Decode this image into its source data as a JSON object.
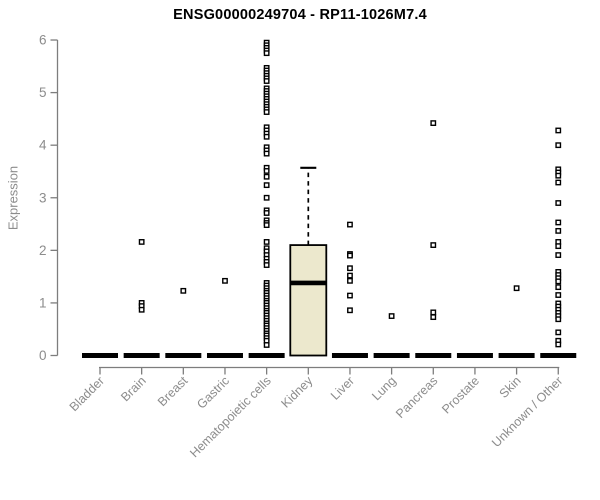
{
  "title": "ENSG00000249704 - RP11-1026M7.4",
  "chart_data": {
    "type": "boxplot",
    "title": "ENSG00000249704 - RP11-1026M7.4",
    "xlabel": "",
    "ylabel": "Expression",
    "ylim": [
      0,
      6
    ],
    "yticks": [
      0,
      1,
      2,
      3,
      4,
      5,
      6
    ],
    "grid": false,
    "categories": [
      "Bladder",
      "Brain",
      "Breast",
      "Gastric",
      "Hematopoietic cells",
      "Kidney",
      "Liver",
      "Lung",
      "Pancreas",
      "Prostate",
      "Skin",
      "Unknown / Other"
    ],
    "boxes": [
      {
        "category": "Bladder",
        "q1": 0,
        "median": 0,
        "q3": 0,
        "whisker_low": 0,
        "whisker_high": 0,
        "filled": false
      },
      {
        "category": "Brain",
        "q1": 0,
        "median": 0,
        "q3": 0,
        "whisker_low": 0,
        "whisker_high": 0,
        "filled": false
      },
      {
        "category": "Breast",
        "q1": 0,
        "median": 0,
        "q3": 0,
        "whisker_low": 0,
        "whisker_high": 0,
        "filled": false
      },
      {
        "category": "Gastric",
        "q1": 0,
        "median": 0,
        "q3": 0,
        "whisker_low": 0,
        "whisker_high": 0,
        "filled": false
      },
      {
        "category": "Hematopoietic cells",
        "q1": 0,
        "median": 0,
        "q3": 0,
        "whisker_low": 0,
        "whisker_high": 0,
        "filled": false
      },
      {
        "category": "Kidney",
        "q1": 0,
        "median": 1.38,
        "q3": 2.1,
        "whisker_low": 0,
        "whisker_high": 3.57,
        "filled": true
      },
      {
        "category": "Liver",
        "q1": 0,
        "median": 0,
        "q3": 0,
        "whisker_low": 0,
        "whisker_high": 0,
        "filled": false
      },
      {
        "category": "Lung",
        "q1": 0,
        "median": 0,
        "q3": 0,
        "whisker_low": 0,
        "whisker_high": 0,
        "filled": false
      },
      {
        "category": "Pancreas",
        "q1": 0,
        "median": 0,
        "q3": 0,
        "whisker_low": 0,
        "whisker_high": 0,
        "filled": false
      },
      {
        "category": "Prostate",
        "q1": 0,
        "median": 0,
        "q3": 0,
        "whisker_low": 0,
        "whisker_high": 0,
        "filled": false
      },
      {
        "category": "Skin",
        "q1": 0,
        "median": 0,
        "q3": 0,
        "whisker_low": 0,
        "whisker_high": 0,
        "filled": false
      },
      {
        "category": "Unknown / Other",
        "q1": 0,
        "median": 0,
        "q3": 0,
        "whisker_low": 0,
        "whisker_high": 0,
        "filled": false
      }
    ],
    "points": [
      [],
      [
        2.16,
        1.0,
        0.94,
        0.87
      ],
      [
        1.23
      ],
      [
        1.42
      ],
      [
        5.95,
        5.9,
        5.85,
        5.8,
        5.75,
        5.47,
        5.42,
        5.37,
        5.32,
        5.27,
        5.22,
        5.08,
        5.03,
        4.98,
        4.93,
        4.88,
        4.83,
        4.78,
        4.73,
        4.68,
        4.63,
        4.34,
        4.28,
        4.22,
        4.16,
        3.96,
        3.9,
        3.84,
        3.57,
        3.51,
        3.4,
        3.24,
        3.0,
        2.76,
        2.71,
        2.57,
        2.52,
        2.48,
        2.16,
        2.04,
        1.98,
        1.91,
        1.84,
        1.78,
        1.72,
        1.38,
        1.33,
        1.28,
        1.23,
        1.19,
        1.14,
        1.09,
        1.04,
        1.0,
        0.95,
        0.9,
        0.85,
        0.81,
        0.76,
        0.71,
        0.66,
        0.61,
        0.57,
        0.52,
        0.47,
        0.42,
        0.38,
        0.33,
        0.28,
        0.2
      ],
      [],
      [
        2.49,
        1.93,
        1.9,
        1.66,
        1.52,
        1.42,
        1.14,
        0.86
      ],
      [
        0.75
      ],
      [
        4.42,
        2.1,
        0.82,
        0.73
      ],
      [],
      [
        1.28
      ],
      [
        4.28,
        4.0,
        3.54,
        3.48,
        3.42,
        3.29,
        2.9,
        2.53,
        2.37,
        2.16,
        2.08,
        1.91,
        1.59,
        1.53,
        1.47,
        1.41,
        1.3,
        1.15,
        0.99,
        0.93,
        0.87,
        0.81,
        0.75,
        0.69,
        0.44,
        0.28,
        0.21
      ]
    ],
    "colors": {
      "box_fill": "#ece8cd",
      "box_border": "#000000",
      "median": "#000000",
      "point_stroke": "#000000",
      "point_fill": "#ffffff",
      "axis_line": "#7d7d7d",
      "tick_text": "#8c8c8c",
      "title": "#000000",
      "background": "#ffffff"
    }
  }
}
